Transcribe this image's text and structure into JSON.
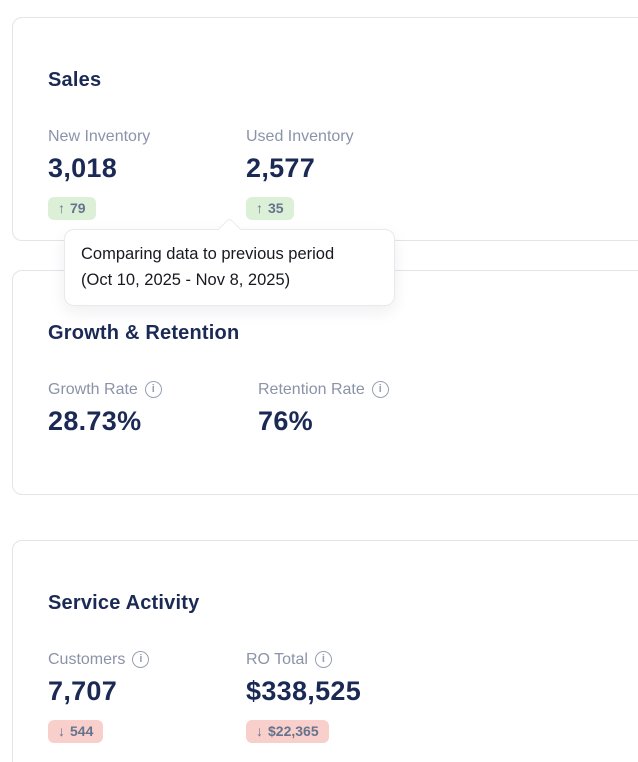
{
  "colors": {
    "heading_navy": "#1b2a55",
    "label_gray": "#8b93a8",
    "badge_text": "#66738e",
    "badge_up_bg": "#dcf0d8",
    "badge_down_bg": "#f8cfcb",
    "card_border": "#e3e3ea"
  },
  "icons": {
    "up_arrow": "↑",
    "down_arrow": "↓",
    "info": "i"
  },
  "tooltip": {
    "line1": "Comparing data to previous period",
    "line2": "(Oct 10, 2025 - Nov 8, 2025)"
  },
  "cards": [
    {
      "title": "Sales",
      "metrics": [
        {
          "label": "New Inventory",
          "value": "3,018",
          "delta": "79",
          "direction": "up"
        },
        {
          "label": "Used Inventory",
          "value": "2,577",
          "delta": "35",
          "direction": "up"
        }
      ]
    },
    {
      "title": "Growth & Retention",
      "metrics": [
        {
          "label": "Growth Rate",
          "value": "28.73%"
        },
        {
          "label": "Retention Rate",
          "value": "76%"
        }
      ]
    },
    {
      "title": "Service Activity",
      "metrics": [
        {
          "label": "Customers",
          "value": "7,707",
          "delta": "544",
          "direction": "down"
        },
        {
          "label": "RO Total",
          "value": "$338,525",
          "delta": "$22,365",
          "direction": "down"
        }
      ]
    }
  ]
}
